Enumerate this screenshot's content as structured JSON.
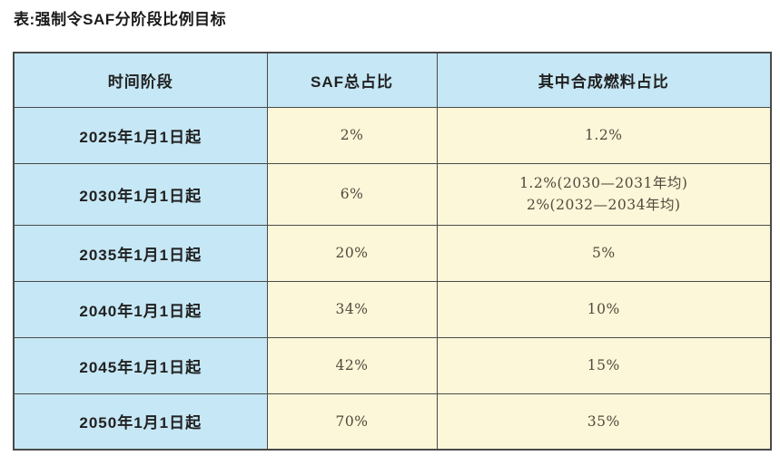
{
  "title": "表:强制令SAF分阶段比例目标",
  "colors": {
    "header_bg": "#c6e7f5",
    "period_col_bg": "#c6e7f5",
    "value_bg": "#fbf7d8",
    "border": "#4a4a4a",
    "value_text": "#54483e",
    "label_text": "#212121"
  },
  "table": {
    "headers": [
      "时间阶段",
      "SAF总占比",
      "其中合成燃料占比"
    ],
    "rows": [
      {
        "period": "2025年1月1日起",
        "saf_total": "2%",
        "synthetic": [
          "1.2%"
        ]
      },
      {
        "period": "2030年1月1日起",
        "saf_total": "6%",
        "synthetic": [
          "1.2%(2030—2031年均)",
          "2%(2032—2034年均)"
        ]
      },
      {
        "period": "2035年1月1日起",
        "saf_total": "20%",
        "synthetic": [
          "5%"
        ]
      },
      {
        "period": "2040年1月1日起",
        "saf_total": "34%",
        "synthetic": [
          "10%"
        ]
      },
      {
        "period": "2045年1月1日起",
        "saf_total": "42%",
        "synthetic": [
          "15%"
        ]
      },
      {
        "period": "2050年1月1日起",
        "saf_total": "70%",
        "synthetic": [
          "35%"
        ]
      }
    ]
  }
}
